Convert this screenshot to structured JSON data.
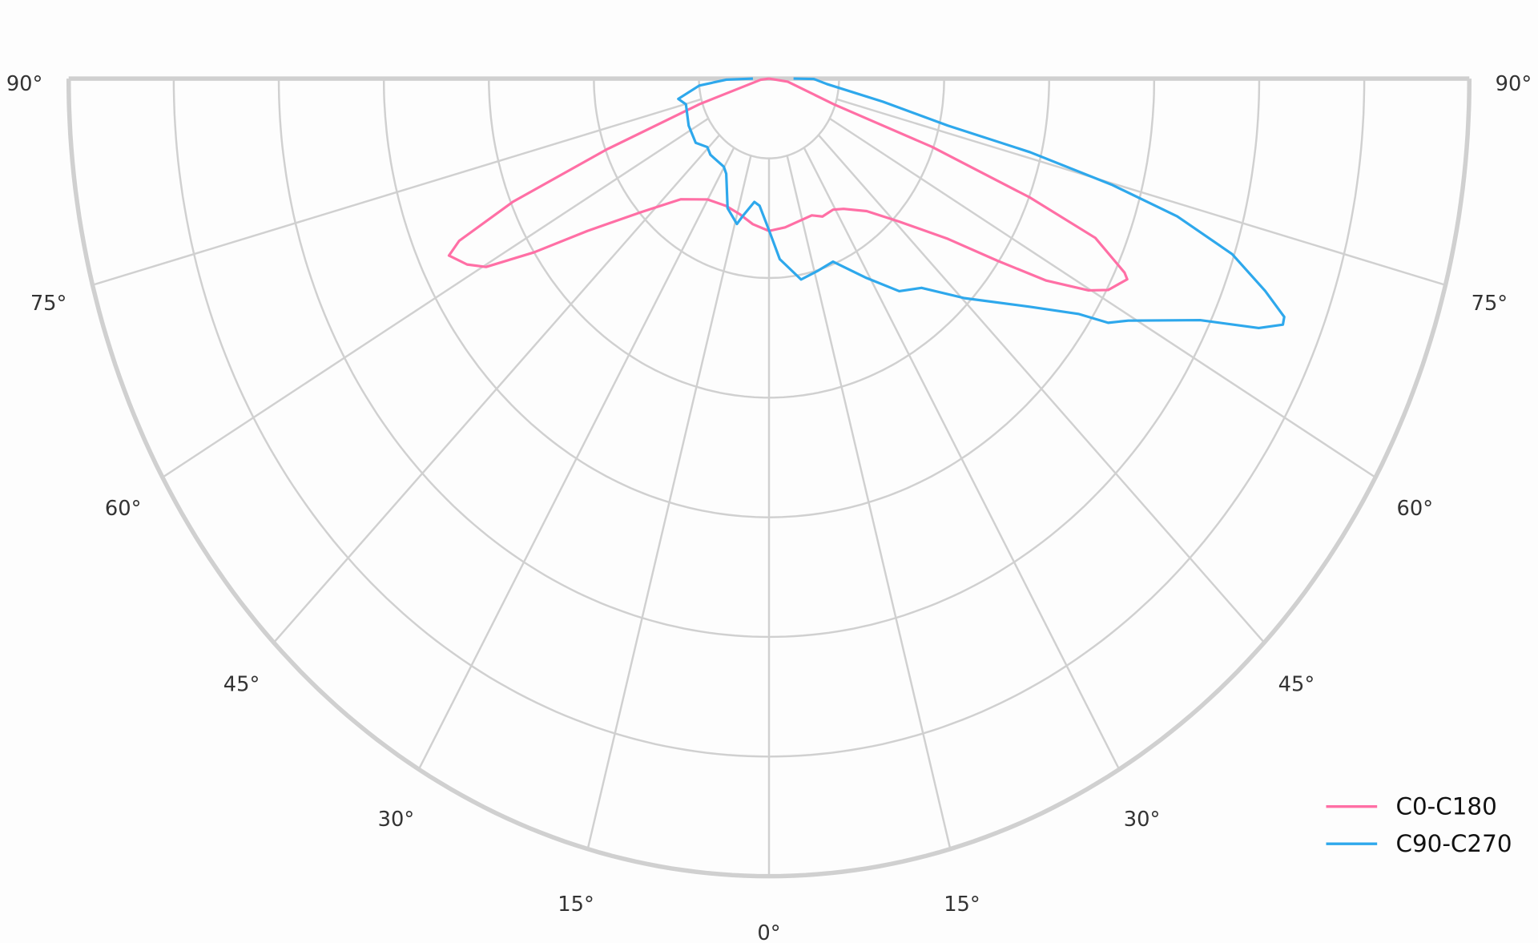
{
  "chart_data": {
    "type": "polar-line",
    "subtype": "half-polar light distribution (0° at bottom, 90° at both sides)",
    "angular_ticks": [
      {
        "angle": -90,
        "label": "90°"
      },
      {
        "angle": -75,
        "label": "75°"
      },
      {
        "angle": -60,
        "label": "60°"
      },
      {
        "angle": -45,
        "label": "45°"
      },
      {
        "angle": -30,
        "label": "30°"
      },
      {
        "angle": -15,
        "label": "15°"
      },
      {
        "angle": 0,
        "label": "0°"
      },
      {
        "angle": 15,
        "label": "15°"
      },
      {
        "angle": 30,
        "label": "30°"
      },
      {
        "angle": 45,
        "label": "45°"
      },
      {
        "angle": 60,
        "label": "60°"
      },
      {
        "angle": 75,
        "label": "75°"
      },
      {
        "angle": 90,
        "label": "90°"
      }
    ],
    "r_range": [
      0,
      100
    ],
    "r_gridlines": [
      10,
      25,
      40,
      55,
      70,
      85,
      100
    ],
    "radial_tick_labels_shown": false,
    "grid": true,
    "legend_position": "bottom-right",
    "series": [
      {
        "name": "C0-C180",
        "color": "#ff6fa5",
        "theta": [
          -90,
          -83,
          -72.1,
          -69,
          -67.1,
          -65.3,
          -64.1,
          -61.6,
          -59.7,
          -57,
          -53.6,
          -47.5,
          -39.8,
          -30,
          -21,
          -13.9,
          -7.2,
          0,
          7,
          19.6,
          23.8,
          29.1,
          33.1,
          40,
          46,
          51.8,
          55,
          57.4,
          59.8,
          61.3,
          63.8,
          64.4,
          66.8,
          68.2,
          69.8,
          70.8,
          82,
          90
        ],
        "r": [
          0,
          1.2,
          10.4,
          24.9,
          39.7,
          48.7,
          50.8,
          49,
          46.8,
          40,
          32.2,
          24.8,
          19.7,
          17.5,
          17.1,
          17.5,
          18.4,
          19.1,
          18.8,
          18.2,
          18.9,
          18.8,
          19.5,
          21.7,
          25.8,
          32.5,
          39.8,
          47,
          52.8,
          55.2,
          57,
          56.3,
          50.7,
          40.1,
          24.8,
          9.8,
          2.7,
          0
        ]
      },
      {
        "name": "C90-C270",
        "color": "#2ea8ec",
        "theta": [
          -90,
          -88.7,
          -85,
          -78.9,
          -74.8,
          -62.8,
          -52.4,
          -45.7,
          -41.2,
          -30.3,
          -27.1,
          -20,
          -14.1,
          -12.4,
          -7.7,
          -4.8,
          0,
          3.9,
          10.3,
          15.9,
          21.7,
          29.1,
          34.9,
          39.7,
          45.4,
          52.5,
          56.3,
          57.7,
          59.4,
          63.8,
          65.9,
          67.2,
          67.9,
          69.4,
          71.6,
          73.5,
          74.8,
          76.1,
          77,
          79.9,
          85.2,
          89.6,
          90
        ],
        "r": [
          2.3,
          6.1,
          10,
          13.2,
          12.3,
          12.9,
          13.2,
          12.3,
          12.7,
          12.8,
          13.4,
          17.3,
          18.8,
          17.7,
          15.6,
          16,
          19,
          22.7,
          25.6,
          25.1,
          24.7,
          28.6,
          32.5,
          34.1,
          39.2,
          47,
          53.2,
          57.3,
          59.6,
          68.6,
          76.6,
          79.6,
          79.4,
          75.7,
          69.7,
          60.8,
          50.7,
          38.4,
          26.2,
          16.5,
          8.3,
          6.4,
          3.5
        ]
      }
    ]
  }
}
